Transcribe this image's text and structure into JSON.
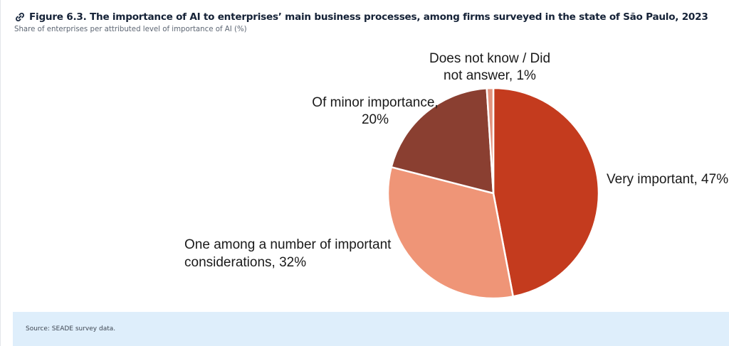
{
  "figure": {
    "title": "Figure 6.3. The importance of AI to enterprises’ main business processes, among firms surveyed in the state of São Paulo, 2023",
    "subtitle": "Share of enterprises per attributed level of importance of AI (%)",
    "link_icon": "link-icon"
  },
  "chart_data": {
    "type": "pie",
    "title": "",
    "slices": [
      {
        "label_lines": [
          "Very important, 47%"
        ],
        "label": "Very important",
        "value": 47,
        "color": "#c43b1e"
      },
      {
        "label_lines": [
          "One among a number of important",
          "considerations, 32%"
        ],
        "label": "One among a number of important considerations",
        "value": 32,
        "color": "#ef9577"
      },
      {
        "label_lines": [
          "Of minor importance,",
          "20%"
        ],
        "label": "Of minor importance",
        "value": 20,
        "color": "#8a3f31"
      },
      {
        "label_lines": [
          "Does not know / Did",
          "not answer, 1%"
        ],
        "label": "Does not know / Did not answer",
        "value": 1,
        "color": "#e2937e"
      }
    ]
  },
  "source": {
    "text": "Source: SEADE survey data."
  }
}
